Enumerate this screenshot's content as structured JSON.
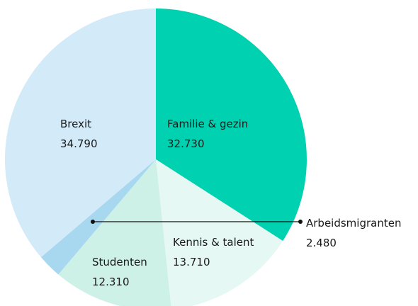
{
  "chart_data": {
    "type": "pie",
    "categories": [
      "Familie & gezin",
      "Kennis & talent",
      "Studenten",
      "Arbeidsmigranten",
      "Brexit"
    ],
    "values": [
      32730,
      13710,
      12310,
      2480,
      34790
    ],
    "value_labels": [
      "32.730",
      "13.710",
      "12.310",
      "2.480",
      "34.790"
    ],
    "colors": [
      "#00d1b0",
      "#e5f8f3",
      "#cdf0e7",
      "#a8d8f0",
      "#d3eaf8"
    ]
  }
}
